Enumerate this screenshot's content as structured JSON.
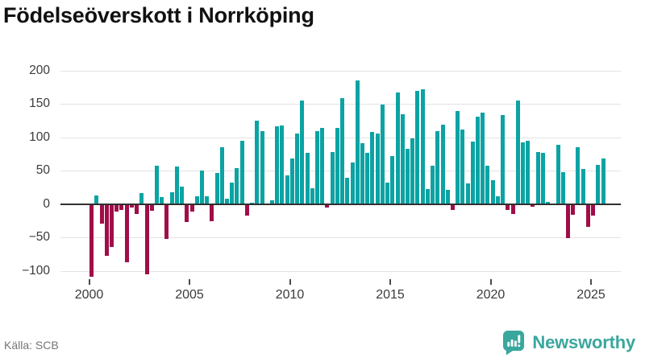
{
  "title": "Födelseöverskott i Norrköping",
  "footer": {
    "source": "Källa: SCB"
  },
  "logo": {
    "text": "Newsworthy",
    "icon": "bar-chart-speech-bubble"
  },
  "colors": {
    "positive_bar": "#0ba3a3",
    "negative_bar": "#a00d49",
    "logo_teal": "#3aa79d",
    "zero_line": "#303030",
    "gridline": "#e3e3e3"
  },
  "y_axis": {
    "ticks": [
      200,
      150,
      100,
      50,
      0,
      -50,
      -100
    ]
  },
  "x_axis": {
    "ticks": [
      2000,
      2005,
      2010,
      2015,
      2020,
      2025
    ]
  },
  "chart_data": {
    "type": "bar",
    "title": "Födelseöverskott i Norrköping",
    "frequency": "quarterly",
    "legend": "none",
    "grid": "horizontal",
    "ylim": [
      -115,
      215
    ],
    "x": [
      "2000Q1",
      "2000Q2",
      "2000Q3",
      "2000Q4",
      "2001Q1",
      "2001Q2",
      "2001Q3",
      "2001Q4",
      "2002Q1",
      "2002Q2",
      "2002Q3",
      "2002Q4",
      "2003Q1",
      "2003Q2",
      "2003Q3",
      "2003Q4",
      "2004Q1",
      "2004Q2",
      "2004Q3",
      "2004Q4",
      "2005Q1",
      "2005Q2",
      "2005Q3",
      "2005Q4",
      "2006Q1",
      "2006Q2",
      "2006Q3",
      "2006Q4",
      "2007Q1",
      "2007Q2",
      "2007Q3",
      "2007Q4",
      "2008Q1",
      "2008Q2",
      "2008Q3",
      "2008Q4",
      "2009Q1",
      "2009Q2",
      "2009Q3",
      "2009Q4",
      "2010Q1",
      "2010Q2",
      "2010Q3",
      "2010Q4",
      "2011Q1",
      "2011Q2",
      "2011Q3",
      "2011Q4",
      "2012Q1",
      "2012Q2",
      "2012Q3",
      "2012Q4",
      "2013Q1",
      "2013Q2",
      "2013Q3",
      "2013Q4",
      "2014Q1",
      "2014Q2",
      "2014Q3",
      "2014Q4",
      "2015Q1",
      "2015Q2",
      "2015Q3",
      "2015Q4",
      "2016Q1",
      "2016Q2",
      "2016Q3",
      "2016Q4",
      "2017Q1",
      "2017Q2",
      "2017Q3",
      "2017Q4",
      "2018Q1",
      "2018Q2",
      "2018Q3",
      "2018Q4",
      "2019Q1",
      "2019Q2",
      "2019Q3",
      "2019Q4",
      "2020Q1",
      "2020Q2",
      "2020Q3",
      "2020Q4",
      "2021Q1",
      "2021Q2",
      "2021Q3",
      "2021Q4",
      "2022Q1",
      "2022Q2",
      "2022Q3",
      "2022Q4",
      "2023Q1",
      "2023Q2",
      "2023Q3",
      "2023Q4",
      "2024Q1",
      "2024Q2",
      "2024Q3",
      "2024Q4",
      "2025Q1",
      "2025Q2",
      "2025Q3"
    ],
    "values": [
      -109,
      13,
      -30,
      -78,
      -65,
      -11,
      -9,
      -87,
      -5,
      -15,
      16,
      -106,
      -10,
      57,
      10,
      -52,
      18,
      56,
      26,
      -27,
      -12,
      11,
      50,
      11,
      -26,
      46,
      85,
      8,
      32,
      54,
      94,
      -18,
      2,
      125,
      109,
      1,
      6,
      116,
      118,
      43,
      68,
      106,
      155,
      76,
      23,
      109,
      114,
      -6,
      78,
      114,
      158,
      39,
      62,
      185,
      91,
      76,
      108,
      106,
      149,
      32,
      72,
      167,
      134,
      82,
      98,
      169,
      172,
      22,
      57,
      109,
      119,
      21,
      -9,
      139,
      112,
      31,
      93,
      131,
      137,
      57,
      35,
      12,
      133,
      -9,
      -15,
      155,
      92,
      95,
      -4,
      78,
      76,
      3,
      0,
      88,
      48,
      -51,
      -16,
      85,
      53,
      -34,
      -18,
      59,
      68
    ]
  }
}
